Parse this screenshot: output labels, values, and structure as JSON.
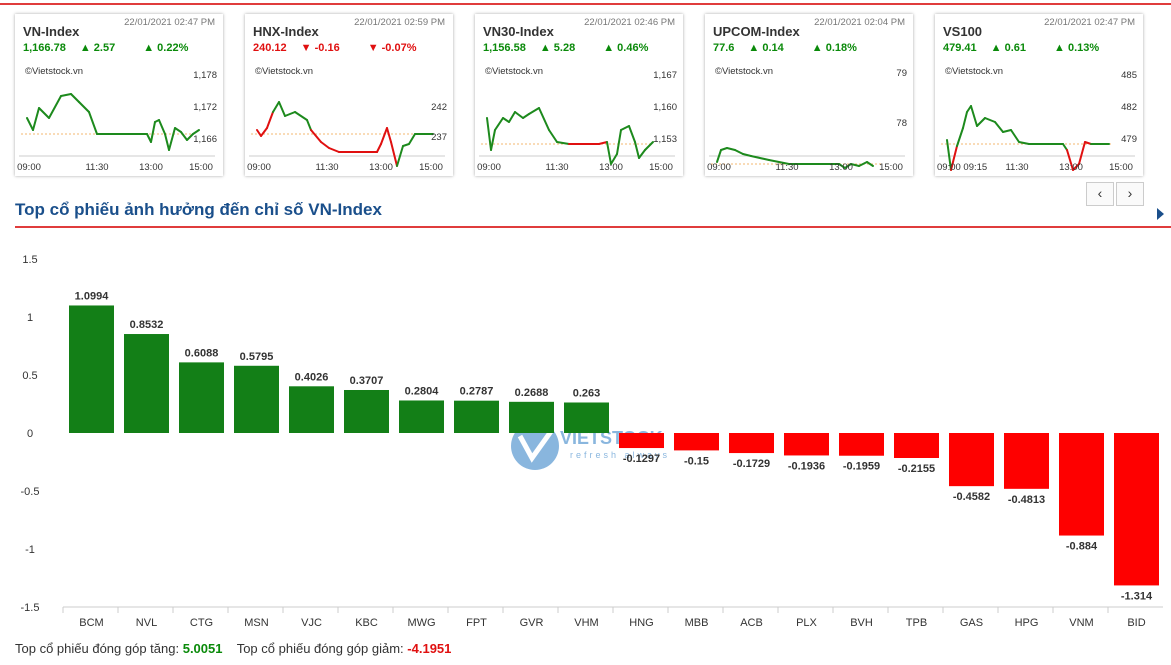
{
  "index_cards": [
    {
      "name": "VN-Index",
      "time": "22/01/2021 02:47 PM",
      "value": "1,166.78",
      "change": "2.57",
      "pct": "0.22%",
      "dir": "up",
      "source": "©Vietstock.vn",
      "y_ticks": [
        "1,178",
        "1,172",
        "1,166"
      ],
      "x_ticks": [
        "09:00",
        "11:30",
        "13:00",
        "15:00"
      ]
    },
    {
      "name": "HNX-Index",
      "time": "22/01/2021 02:59 PM",
      "value": "240.12",
      "change": "-0.16",
      "pct": "-0.07%",
      "dir": "down",
      "source": "©Vietstock.vn",
      "y_ticks": [
        "242",
        "237"
      ],
      "x_ticks": [
        "09:00",
        "11:30",
        "13:00",
        "15:00"
      ]
    },
    {
      "name": "VN30-Index",
      "time": "22/01/2021 02:46 PM",
      "value": "1,156.58",
      "change": "5.28",
      "pct": "0.46%",
      "dir": "up",
      "source": "©Vietstock.vn",
      "y_ticks": [
        "1,167",
        "1,160",
        "1,153"
      ],
      "x_ticks": [
        "09:00",
        "11:30",
        "13:00",
        "15:00"
      ]
    },
    {
      "name": "UPCOM-Index",
      "time": "22/01/2021 02:04 PM",
      "value": "77.6",
      "change": "0.14",
      "pct": "0.18%",
      "dir": "up",
      "source": "©Vietstock.vn",
      "y_ticks": [
        "79",
        "78"
      ],
      "x_ticks": [
        "09:00",
        "11:30",
        "13:00",
        "15:00"
      ]
    },
    {
      "name": "VS100",
      "time": "22/01/2021 02:47 PM",
      "value": "479.41",
      "change": "0.61",
      "pct": "0.13%",
      "dir": "up",
      "source": "©Vietstock.vn",
      "y_ticks": [
        "485",
        "482",
        "479"
      ],
      "x_ticks": [
        "09:00 09:15",
        "11:30",
        "13:00",
        "15:00"
      ]
    }
  ],
  "nav": {
    "prev": "‹",
    "next": "›"
  },
  "section_title": "Top cổ phiếu ảnh hưởng đến chỉ số VN-Index",
  "colors": {
    "up": "#0a8a0a",
    "down": "#e01010",
    "bar_up": "#137f17",
    "bar_down": "#fe0000",
    "title": "#1a4f8b",
    "accent": "#e03c3c"
  },
  "chart_data": {
    "type": "bar",
    "categories": [
      "BCM",
      "NVL",
      "CTG",
      "MSN",
      "VJC",
      "KBC",
      "MWG",
      "FPT",
      "GVR",
      "VHM",
      "HNG",
      "MBB",
      "ACB",
      "PLX",
      "BVH",
      "TPB",
      "GAS",
      "HPG",
      "VNM",
      "BID"
    ],
    "values": [
      1.0994,
      0.8532,
      0.6088,
      0.5795,
      0.4026,
      0.3707,
      0.2804,
      0.2787,
      0.2688,
      0.263,
      -0.1297,
      -0.15,
      -0.1729,
      -0.1936,
      -0.1959,
      -0.2155,
      -0.4582,
      -0.4813,
      -0.884,
      -1.314
    ],
    "labels": [
      "1.0994",
      "0.8532",
      "0.6088",
      "0.5795",
      "0.4026",
      "0.3707",
      "0.2804",
      "0.2787",
      "0.2688",
      "0.263",
      "-0.1297",
      "-0.15",
      "-0.1729",
      "-0.1936",
      "-0.1959",
      "-0.2155",
      "-0.4582",
      "-0.4813",
      "-0.884",
      "-1.314"
    ],
    "y_ticks": [
      "1.5",
      "1",
      "0.5",
      "0",
      "-0.5",
      "-1",
      "-1.5"
    ],
    "ylim": [
      -1.5,
      1.5
    ]
  },
  "footer": {
    "gain_label": "Top cổ phiếu đóng góp tăng:",
    "gain_value": "5.0051",
    "loss_label": "Top cổ phiếu đóng góp giảm:",
    "loss_value": "-4.1951"
  }
}
